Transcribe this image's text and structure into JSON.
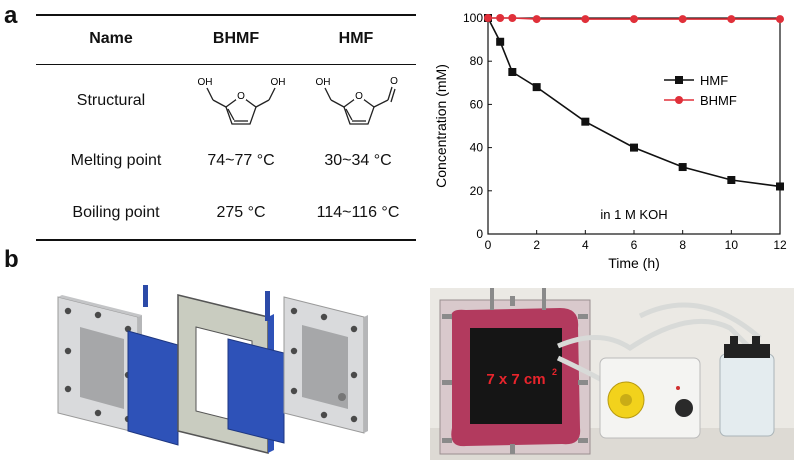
{
  "panel_labels": {
    "a": "a",
    "b": "b"
  },
  "table": {
    "headers": {
      "name": "Name",
      "bhmf": "BHMF",
      "hmf": "HMF"
    },
    "rows": [
      {
        "label": "Structural",
        "bhmf": "",
        "hmf": ""
      },
      {
        "label": "Melting point",
        "bhmf": "74~77 °C",
        "hmf": "30~34 °C"
      },
      {
        "label": "Boiling point",
        "bhmf": "275 °C",
        "hmf": "114~116 °C"
      }
    ],
    "structure_labels": {
      "oh": "OH",
      "o": "O"
    }
  },
  "photo": {
    "label": "7 x 7 cm",
    "label_sup": "2"
  },
  "chart_data": {
    "type": "line",
    "xlabel": "Time (h)",
    "ylabel": "Concentration (mM)",
    "annotation": "in 1 M KOH",
    "xlim": [
      0,
      12
    ],
    "ylim": [
      0,
      100
    ],
    "xticks": [
      0,
      2,
      4,
      6,
      8,
      10,
      12
    ],
    "yticks": [
      0,
      20,
      40,
      60,
      80,
      100
    ],
    "legend_position": "top-right",
    "series": [
      {
        "name": "HMF",
        "color": "#111111",
        "marker": "square",
        "x": [
          0,
          0.5,
          1,
          2,
          4,
          6,
          8,
          10,
          12
        ],
        "y": [
          100,
          89,
          75,
          68,
          52,
          40,
          31,
          25,
          22
        ]
      },
      {
        "name": "BHMF",
        "color": "#e0303a",
        "marker": "circle",
        "x": [
          0,
          0.5,
          1,
          2,
          4,
          6,
          8,
          10,
          12
        ],
        "y": [
          100,
          100,
          100,
          99.5,
          99.5,
          99.5,
          99.5,
          99.5,
          99.5
        ]
      }
    ]
  }
}
